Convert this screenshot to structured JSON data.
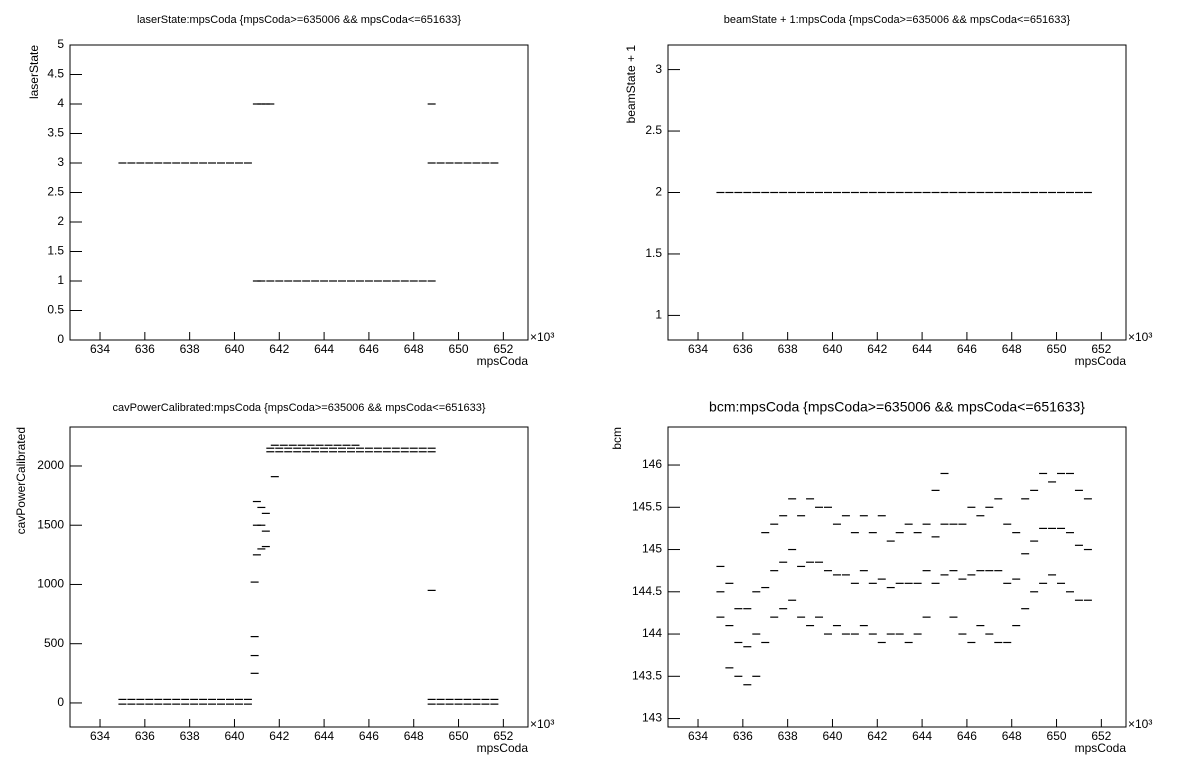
{
  "chart_data": [
    {
      "type": "scatter",
      "title": "laserState:mpsCoda {mpsCoda>=635006 && mpsCoda<=651633}",
      "x_label": "mpsCoda",
      "y_label": "laserState",
      "x_multiplier": "×10³",
      "color": "#000000",
      "xlim": [
        632.66,
        653.1
      ],
      "xticks": [
        634,
        636,
        638,
        640,
        642,
        644,
        646,
        648,
        650,
        652
      ],
      "ylim": [
        0,
        5
      ],
      "yticks": [
        0,
        0.5,
        1,
        1.5,
        2,
        2.5,
        3,
        3.5,
        4,
        4.5,
        5
      ],
      "series": [
        {
          "x": [
            635,
            635.4,
            635.8,
            636.2,
            636.6,
            637,
            637.4,
            637.8,
            638.2,
            638.6,
            639,
            639.4,
            639.8,
            640.2,
            640.6
          ],
          "values": [
            3,
            3,
            3,
            3,
            3,
            3,
            3,
            3,
            3,
            3,
            3,
            3,
            3,
            3,
            3
          ]
        },
        {
          "x": [
            641,
            641.2,
            641.4,
            641.6
          ],
          "values": [
            4,
            4,
            4,
            4
          ]
        },
        {
          "x": [
            641,
            641.2,
            641.6,
            642,
            642.4,
            642.8,
            643.2,
            643.6,
            644,
            644.4,
            644.8,
            645.2,
            645.6,
            646,
            646.4,
            646.8,
            647.2,
            647.6,
            648,
            648.4,
            648.8
          ],
          "values": [
            1,
            1,
            1,
            1,
            1,
            1,
            1,
            1,
            1,
            1,
            1,
            1,
            1,
            1,
            1,
            1,
            1,
            1,
            1,
            1,
            1
          ]
        },
        {
          "x": [
            648.8,
            649.2,
            649.6,
            650,
            650.4,
            650.8,
            651.2,
            651.6
          ],
          "values": [
            3,
            3,
            3,
            3,
            3,
            3,
            3,
            3
          ]
        },
        {
          "x": [
            648.8
          ],
          "values": [
            4
          ]
        }
      ]
    },
    {
      "type": "scatter",
      "title": "beamState + 1:mpsCoda {mpsCoda>=635006 && mpsCoda<=651633}",
      "x_label": "mpsCoda",
      "y_label": "beamState + 1",
      "x_multiplier": "×10³",
      "color": "#000000",
      "xlim": [
        632.66,
        653.1
      ],
      "xticks": [
        634,
        636,
        638,
        640,
        642,
        644,
        646,
        648,
        650,
        652
      ],
      "ylim": [
        0.8,
        3.2
      ],
      "yticks": [
        1,
        1.5,
        2,
        2.5,
        3
      ],
      "series": [
        {
          "x": [
            635,
            635.4,
            635.8,
            636.2,
            636.6,
            637,
            637.4,
            637.8,
            638.2,
            638.6,
            639,
            639.4,
            639.8,
            640.2,
            640.6,
            641,
            641.4,
            641.8,
            642.2,
            642.6,
            643,
            643.4,
            643.8,
            644.2,
            644.6,
            645,
            645.4,
            645.8,
            646.2,
            646.6,
            647,
            647.4,
            647.8,
            648.2,
            648.6,
            649,
            649.4,
            649.8,
            650.2,
            650.6,
            651,
            651.4
          ],
          "values": [
            2,
            2,
            2,
            2,
            2,
            2,
            2,
            2,
            2,
            2,
            2,
            2,
            2,
            2,
            2,
            2,
            2,
            2,
            2,
            2,
            2,
            2,
            2,
            2,
            2,
            2,
            2,
            2,
            2,
            2,
            2,
            2,
            2,
            2,
            2,
            2,
            2,
            2,
            2,
            2,
            2,
            2
          ]
        }
      ]
    },
    {
      "type": "scatter",
      "title": "cavPowerCalibrated:mpsCoda {mpsCoda>=635006 && mpsCoda<=651633}",
      "x_label": "mpsCoda",
      "y_label": "cavPowerCalibrated",
      "x_multiplier": "×10³",
      "color": "#000000",
      "xlim": [
        632.66,
        653.1
      ],
      "xticks": [
        634,
        636,
        638,
        640,
        642,
        644,
        646,
        648,
        650,
        652
      ],
      "ylim": [
        -203,
        2329
      ],
      "yticks": [
        0,
        500,
        1000,
        1500,
        2000
      ],
      "series": [
        {
          "x": [
            635,
            635.4,
            635.8,
            636.2,
            636.6,
            637,
            637.4,
            637.8,
            638.2,
            638.6,
            639,
            639.4,
            639.8,
            640.2,
            640.6
          ],
          "values": [
            30,
            30,
            30,
            30,
            30,
            30,
            30,
            30,
            30,
            30,
            30,
            30,
            30,
            30,
            30
          ]
        },
        {
          "x": [
            635,
            635.4,
            635.8,
            636.2,
            636.6,
            637,
            637.4,
            637.8,
            638.2,
            638.6,
            639,
            639.4,
            639.8,
            640.2,
            640.6
          ],
          "values": [
            -10,
            -10,
            -10,
            -10,
            -10,
            -10,
            -10,
            -10,
            -10,
            -10,
            -10,
            -10,
            -10,
            -10,
            -10
          ]
        },
        {
          "x": [
            640.9,
            640.9,
            640.9,
            640.9,
            641,
            641,
            641,
            641.2,
            641.2,
            641.2,
            641.4,
            641.4,
            641.4
          ],
          "values": [
            1020,
            560,
            400,
            250,
            1250,
            1500,
            1700,
            1300,
            1500,
            1650,
            1320,
            1450,
            1600
          ]
        },
        {
          "x": [
            641.6,
            642,
            642.4,
            642.8,
            643.2,
            643.6,
            644,
            644.4,
            644.8,
            645.2,
            645.6,
            646,
            646.4,
            646.8,
            647.2,
            647.6,
            648,
            648.4,
            648.8
          ],
          "values": [
            2150,
            2150,
            2150,
            2150,
            2150,
            2150,
            2150,
            2150,
            2150,
            2150,
            2150,
            2150,
            2150,
            2150,
            2150,
            2150,
            2150,
            2150,
            2150
          ]
        },
        {
          "x": [
            641.6,
            642,
            642.4,
            642.8,
            643.2,
            643.6,
            644,
            644.4,
            644.8,
            645.2,
            645.6,
            646,
            646.4,
            646.8,
            647.2,
            647.6,
            648,
            648.4,
            648.8
          ],
          "values": [
            2120,
            2120,
            2120,
            2120,
            2120,
            2120,
            2120,
            2120,
            2120,
            2120,
            2120,
            2120,
            2120,
            2120,
            2120,
            2120,
            2120,
            2120,
            2120
          ]
        },
        {
          "x": [
            641.8,
            642.2,
            642.6,
            643,
            643.4,
            643.8,
            644.2,
            644.6,
            645,
            645.4
          ],
          "values": [
            2175,
            2175,
            2175,
            2175,
            2175,
            2175,
            2175,
            2175,
            2175,
            2175
          ]
        },
        {
          "x": [
            641.8,
            648.8
          ],
          "values": [
            1910,
            950
          ]
        },
        {
          "x": [
            648.8,
            649.2,
            649.6,
            650,
            650.4,
            650.8,
            651.2,
            651.6
          ],
          "values": [
            30,
            30,
            30,
            30,
            30,
            30,
            30,
            30
          ]
        },
        {
          "x": [
            648.8,
            649.2,
            649.6,
            650,
            650.4,
            650.8,
            651.2,
            651.6
          ],
          "values": [
            -10,
            -10,
            -10,
            -10,
            -10,
            -10,
            -10,
            -10
          ]
        }
      ]
    },
    {
      "type": "scatter",
      "title": "bcm:mpsCoda {mpsCoda>=635006 && mpsCoda<=651633}",
      "x_label": "mpsCoda",
      "y_label": "bcm",
      "x_multiplier": "×10³",
      "color": "#000000",
      "xlim": [
        632.66,
        653.1
      ],
      "xticks": [
        634,
        636,
        638,
        640,
        642,
        644,
        646,
        648,
        650,
        652
      ],
      "ylim": [
        142.9,
        146.45
      ],
      "yticks": [
        143,
        143.5,
        144,
        144.5,
        145,
        145.5,
        146
      ],
      "series": [
        {
          "x": [
            635,
            635.4,
            635.8,
            636.2,
            636.6,
            637,
            637.4,
            637.8,
            638.2,
            638.6,
            639,
            639.4,
            639.8,
            640.2,
            640.6,
            641,
            641.4,
            641.8,
            642.2,
            642.6,
            643,
            643.4,
            643.8,
            644.2,
            644.6,
            645,
            645.4,
            645.8,
            646.2,
            646.6,
            647,
            647.4,
            647.8,
            648.2,
            648.6,
            649,
            649.4,
            649.8,
            650.2,
            650.6,
            651,
            651.4
          ],
          "values": [
            144.8,
            144.6,
            144.3,
            144.3,
            144.5,
            145.2,
            145.3,
            145.4,
            145.6,
            145.4,
            145.6,
            145.5,
            145.5,
            145.3,
            145.4,
            145.2,
            145.4,
            145.2,
            145.4,
            145.1,
            145.2,
            145.3,
            145.2,
            145.3,
            145.7,
            145.9,
            145.3,
            145.3,
            145.5,
            145.4,
            145.5,
            145.6,
            145.3,
            145.2,
            145.6,
            145.7,
            145.9,
            145.8,
            145.9,
            145.9,
            145.7,
            145.6
          ]
        },
        {
          "x": [
            635,
            635.4,
            635.8,
            636.2,
            636.6,
            637,
            637.4,
            637.8,
            638.2,
            638.6,
            639,
            639.4,
            639.8,
            640.2,
            640.6,
            641,
            641.4,
            641.8,
            642.2,
            642.6,
            643,
            643.4,
            643.8,
            644.2,
            644.6,
            645,
            645.4,
            645.8,
            646.2,
            646.6,
            647,
            647.4,
            647.8,
            648.2,
            648.6,
            649,
            649.4,
            649.8,
            650.2,
            650.6,
            651,
            651.4
          ],
          "values": [
            144.5,
            144.1,
            143.9,
            143.85,
            144.0,
            144.55,
            144.75,
            144.85,
            145.0,
            144.8,
            144.85,
            144.85,
            144.75,
            144.7,
            144.7,
            144.6,
            144.75,
            144.6,
            144.65,
            144.55,
            144.6,
            144.6,
            144.6,
            144.75,
            145.15,
            145.3,
            144.75,
            144.65,
            144.7,
            144.75,
            144.75,
            144.75,
            144.6,
            144.65,
            144.95,
            145.1,
            145.25,
            145.25,
            145.25,
            145.2,
            145.05,
            145.0
          ]
        },
        {
          "x": [
            635,
            635.4,
            635.8,
            636.2,
            636.6,
            637,
            637.4,
            637.8,
            638.2,
            638.6,
            639,
            639.4,
            639.8,
            640.2,
            640.6,
            641,
            641.4,
            641.8,
            642.2,
            642.6,
            643,
            643.4,
            643.8,
            644.2,
            644.6,
            645,
            645.4,
            645.8,
            646.2,
            646.6,
            647,
            647.4,
            647.8,
            648.2,
            648.6,
            649,
            649.4,
            649.8,
            650.2,
            650.6,
            651,
            651.4
          ],
          "values": [
            144.2,
            143.6,
            143.5,
            143.4,
            143.5,
            143.9,
            144.2,
            144.3,
            144.4,
            144.2,
            144.1,
            144.2,
            144.0,
            144.1,
            144.0,
            144.0,
            144.1,
            144.0,
            143.9,
            144.0,
            144.0,
            143.9,
            144.0,
            144.2,
            144.6,
            144.7,
            144.2,
            144.0,
            143.9,
            144.1,
            144.0,
            143.9,
            143.9,
            144.1,
            144.3,
            144.5,
            144.6,
            144.7,
            144.6,
            144.5,
            144.4,
            144.4
          ]
        }
      ]
    }
  ]
}
